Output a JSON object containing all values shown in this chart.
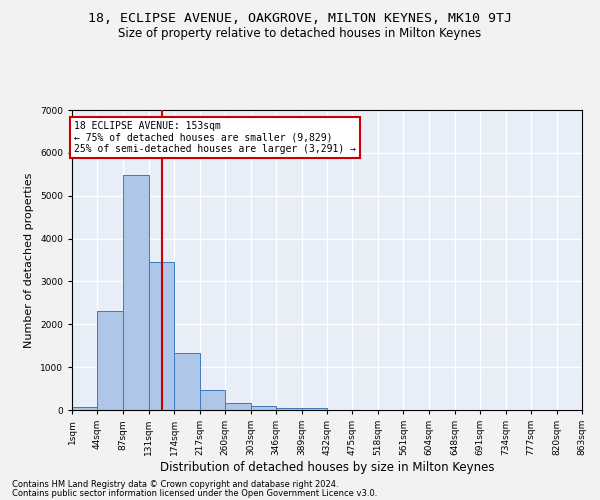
{
  "title1": "18, ECLIPSE AVENUE, OAKGROVE, MILTON KEYNES, MK10 9TJ",
  "title2": "Size of property relative to detached houses in Milton Keynes",
  "xlabel": "Distribution of detached houses by size in Milton Keynes",
  "ylabel": "Number of detached properties",
  "footer1": "Contains HM Land Registry data © Crown copyright and database right 2024.",
  "footer2": "Contains public sector information licensed under the Open Government Licence v3.0.",
  "bar_edges": [
    1,
    44,
    87,
    131,
    174,
    217,
    260,
    303,
    346,
    389,
    432,
    475,
    518,
    561,
    604,
    648,
    691,
    734,
    777,
    820,
    863
  ],
  "bar_heights": [
    75,
    2300,
    5480,
    3450,
    1320,
    460,
    155,
    90,
    55,
    40,
    0,
    0,
    0,
    0,
    0,
    0,
    0,
    0,
    0,
    0
  ],
  "bar_color": "#aec6e8",
  "bar_edge_color": "#3a7abf",
  "vline_x": 153,
  "vline_color": "#cc0000",
  "annotation_line1": "18 ECLIPSE AVENUE: 153sqm",
  "annotation_line2": "← 75% of detached houses are smaller (9,829)",
  "annotation_line3": "25% of semi-detached houses are larger (3,291) →",
  "annotation_box_color": "#ffffff",
  "annotation_box_edge_color": "#cc0000",
  "ylim": [
    0,
    7000
  ],
  "yticks": [
    0,
    1000,
    2000,
    3000,
    4000,
    5000,
    6000,
    7000
  ],
  "background_color": "#e8eef8",
  "grid_color": "#ffffff",
  "title1_fontsize": 9.5,
  "title2_fontsize": 8.5,
  "xlabel_fontsize": 8.5,
  "ylabel_fontsize": 8,
  "tick_fontsize": 6.5,
  "footer_fontsize": 6,
  "tick_labels": [
    "1sqm",
    "44sqm",
    "87sqm",
    "131sqm",
    "174sqm",
    "217sqm",
    "260sqm",
    "303sqm",
    "346sqm",
    "389sqm",
    "432sqm",
    "475sqm",
    "518sqm",
    "561sqm",
    "604sqm",
    "648sqm",
    "691sqm",
    "734sqm",
    "777sqm",
    "820sqm",
    "863sqm"
  ]
}
